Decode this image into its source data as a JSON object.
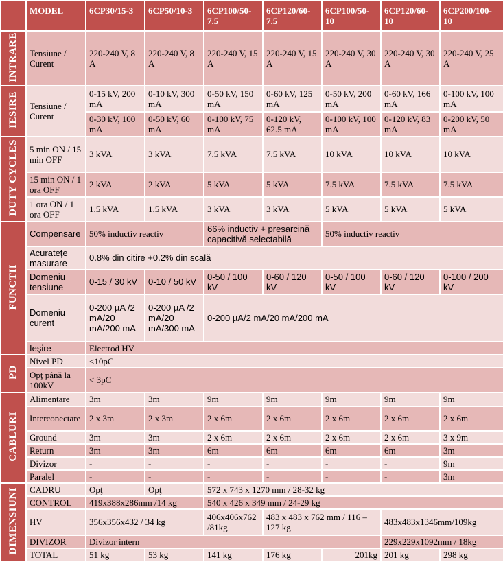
{
  "header": [
    "MODEL",
    "6CP30/15-3",
    "6CP50/10-3",
    "6CP100/50-7.5",
    "6CP120/60-7.5",
    "6CP100/50-10",
    "6CP120/60-10",
    "6CP200/100-10"
  ],
  "sections": {
    "intrare": "INTRARE",
    "iesire": "IESIRE",
    "duty": "DUTY CYCLES",
    "functii": "FUNCTII",
    "pd": "PD",
    "cabluri": "CABLURI",
    "dimensiuni": "DIMENSIUNI"
  },
  "intrare": {
    "label": "Tensiune / Curent",
    "values": [
      "220-240 V, 8 A",
      "220-240 V, 8 A",
      "220-240 V, 15 A",
      "220-240 V, 15 A",
      "220-240 V, 30 A",
      "220-240 V, 30 A",
      "220-240 V, 25 A"
    ]
  },
  "iesire": {
    "label": "Tensiune / Curent",
    "row1": [
      "0-15 kV, 200 mA",
      "0-10 kV, 300 mA",
      "0-50 kV, 150 mA",
      "0-60 kV, 125 mA",
      "0-50 kV, 200 mA",
      "0-60 kV, 166 mA",
      "0-100 kV, 100 mA"
    ],
    "row2": [
      "0-30 kV, 100 mA",
      "0-50 kV, 60 mA",
      "0-100 kV, 75 mA",
      "0-120 kV, 62.5 mA",
      "0-100 kV, 100 mA",
      "0-120 kV, 83 mA",
      "0-200 kV, 50 mA"
    ]
  },
  "duty": {
    "r1": {
      "label": "5 min ON / 15 min OFF",
      "values": [
        "3 kVA",
        "3 kVA",
        "7.5 kVA",
        "7.5 kVA",
        "10 kVA",
        "10 kVA",
        "10 kVA"
      ]
    },
    "r2": {
      "label": "15 min ON / 1 ora OFF",
      "values": [
        "2 kVA",
        "2 kVA",
        "5 kVA",
        "5 kVA",
        "7.5 kVA",
        "7.5 kVA",
        "7.5 kVA"
      ]
    },
    "r3": {
      "label": "1 ora ON / 1 ora OFF",
      "values": [
        "1.5 kVA",
        "1.5 kVA",
        "3 kVA",
        "3 kVA",
        "5 kVA",
        "5 kVA",
        "5 kVA"
      ]
    }
  },
  "functii": {
    "compensare": {
      "label": "Compensare",
      "a": "50% inductiv reactiv",
      "b": "66% inductiv + presarcină capacitivă selectabilă",
      "c": "50% inductiv reactiv"
    },
    "acuratete": {
      "label": "Acurateţe masurare",
      "value": "0.8% din citire +0.2% din scală"
    },
    "domeniu_tensiune": {
      "label": "Domeniu tensiune",
      "values": [
        "0-15 / 30 kV",
        "0-10 / 50 kV",
        "0-50 / 100 kV",
        "0-60 / 120 kV",
        "0-50 / 100 kV",
        "0-60 / 120 kV",
        "0-100 / 200 kV"
      ]
    },
    "domeniu_curent": {
      "label": "Domeniu curent",
      "a": "0-200 µA /2 mA/20 mA/200 mA",
      "b": "0-200 µA /2 mA/20 mA/300 mA",
      "c": "0-200 µA/2 mA/20 mA/200 mA"
    },
    "iesire": {
      "label": "Ieşire",
      "value": "Electrod HV"
    }
  },
  "pd": {
    "nivel": {
      "label": "Nivel PD",
      "value": "<10pC"
    },
    "opt": {
      "label": "Opţ până la 100kV",
      "value": "< 3pC"
    }
  },
  "cabluri": {
    "alimentare": {
      "label": "Alimentare",
      "values": [
        "3m",
        "3m",
        "9m",
        "9m",
        "9m",
        "9m",
        "9m"
      ]
    },
    "interconectare": {
      "label": "Interconectare",
      "values": [
        "2 x 3m",
        "2 x 3m",
        "2 x 6m",
        "2 x 6m",
        "2 x 6m",
        "2 x 6m",
        "2 x 6m"
      ]
    },
    "ground": {
      "label": "Ground",
      "values": [
        "3m",
        "3m",
        "2 x 6m",
        "2 x 6m",
        "2 x 6m",
        "2 x 6m",
        "3 x 9m"
      ]
    },
    "return": {
      "label": "Return",
      "values": [
        "3m",
        "3m",
        "6m",
        "6m",
        "6m",
        "6m",
        "3m"
      ]
    },
    "divizor": {
      "label": "Divizor",
      "values": [
        "-",
        "-",
        "-",
        "-",
        "-",
        "-",
        "9m"
      ]
    },
    "paralel": {
      "label": "Paralel",
      "values": [
        "-",
        "-",
        "-",
        "-",
        "-",
        "-",
        "3m"
      ]
    }
  },
  "dimensiuni": {
    "cadru": {
      "label": "CADRU",
      "a": "Opţ",
      "b": "Opţ",
      "c": "572 x 743 x 1270 mm / 28-32 kg"
    },
    "control": {
      "label": "CONTROL",
      "a": "419x388x286mm /14 kg",
      "b": "540 x 426 x 349 mm / 24-29 kg"
    },
    "hv": {
      "label": "HV",
      "a": "356x356x432 / 34 kg",
      "b": "406x406x762 /81kg",
      "c": "483 x 483 x 762 mm / 116 – 127 kg",
      "d": "483x483x1346mm/109kg"
    },
    "divizor": {
      "label": "DIVIZOR",
      "a": "Divizor intern",
      "b": "229x229x1092mm / 18kg"
    },
    "total": {
      "label": "TOTAL",
      "values": [
        "51 kg",
        "53 kg",
        "141 kg",
        "176 kg",
        "201kg",
        "201 kg",
        "298 kg"
      ]
    }
  }
}
